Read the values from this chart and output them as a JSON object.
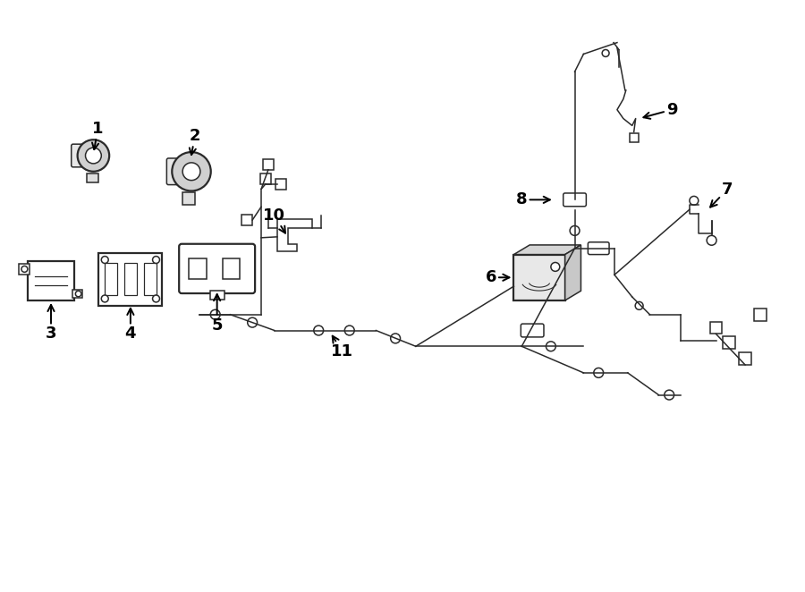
{
  "bg_color": "#ffffff",
  "line_color": "#2a2a2a",
  "text_color": "#000000",
  "fig_width": 9.0,
  "fig_height": 6.62,
  "lw": 1.1,
  "lw2": 1.6
}
